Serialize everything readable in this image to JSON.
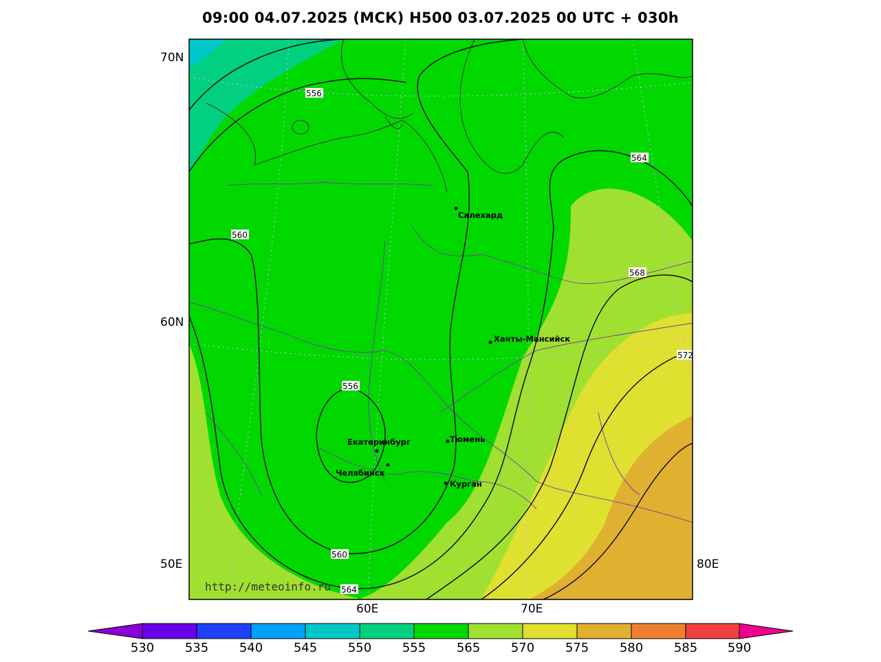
{
  "header": {
    "title": "09:00 04.07.2025 (МСК) H500  03.07.2025 00 UTC + 030h"
  },
  "map": {
    "parameter": "H500",
    "lat_labels": [
      "70N",
      "60N",
      "50E"
    ],
    "lon_labels": [
      "60E",
      "70E",
      "80E"
    ],
    "contour_labels": [
      "556",
      "556",
      "560",
      "560",
      "564",
      "564",
      "568",
      "572"
    ],
    "cities": [
      {
        "name": "Салехард"
      },
      {
        "name": "Ханты-Мансийск"
      },
      {
        "name": "Екатеринбург"
      },
      {
        "name": "Тюмень"
      },
      {
        "name": "Челябинск"
      },
      {
        "name": "Курган"
      }
    ],
    "watermark": "http://meteoinfo.ru"
  },
  "colorbar": {
    "ticks": [
      "530",
      "535",
      "540",
      "545",
      "550",
      "555",
      "565",
      "570",
      "575",
      "580",
      "585",
      "590"
    ],
    "colors": [
      "#8b00d8",
      "#6a00e8",
      "#2040ff",
      "#00a0ff",
      "#00c8c8",
      "#00d080",
      "#00d800",
      "#a0e030",
      "#e0e030",
      "#e0b030",
      "#f08030",
      "#f04040",
      "#f00090"
    ]
  }
}
